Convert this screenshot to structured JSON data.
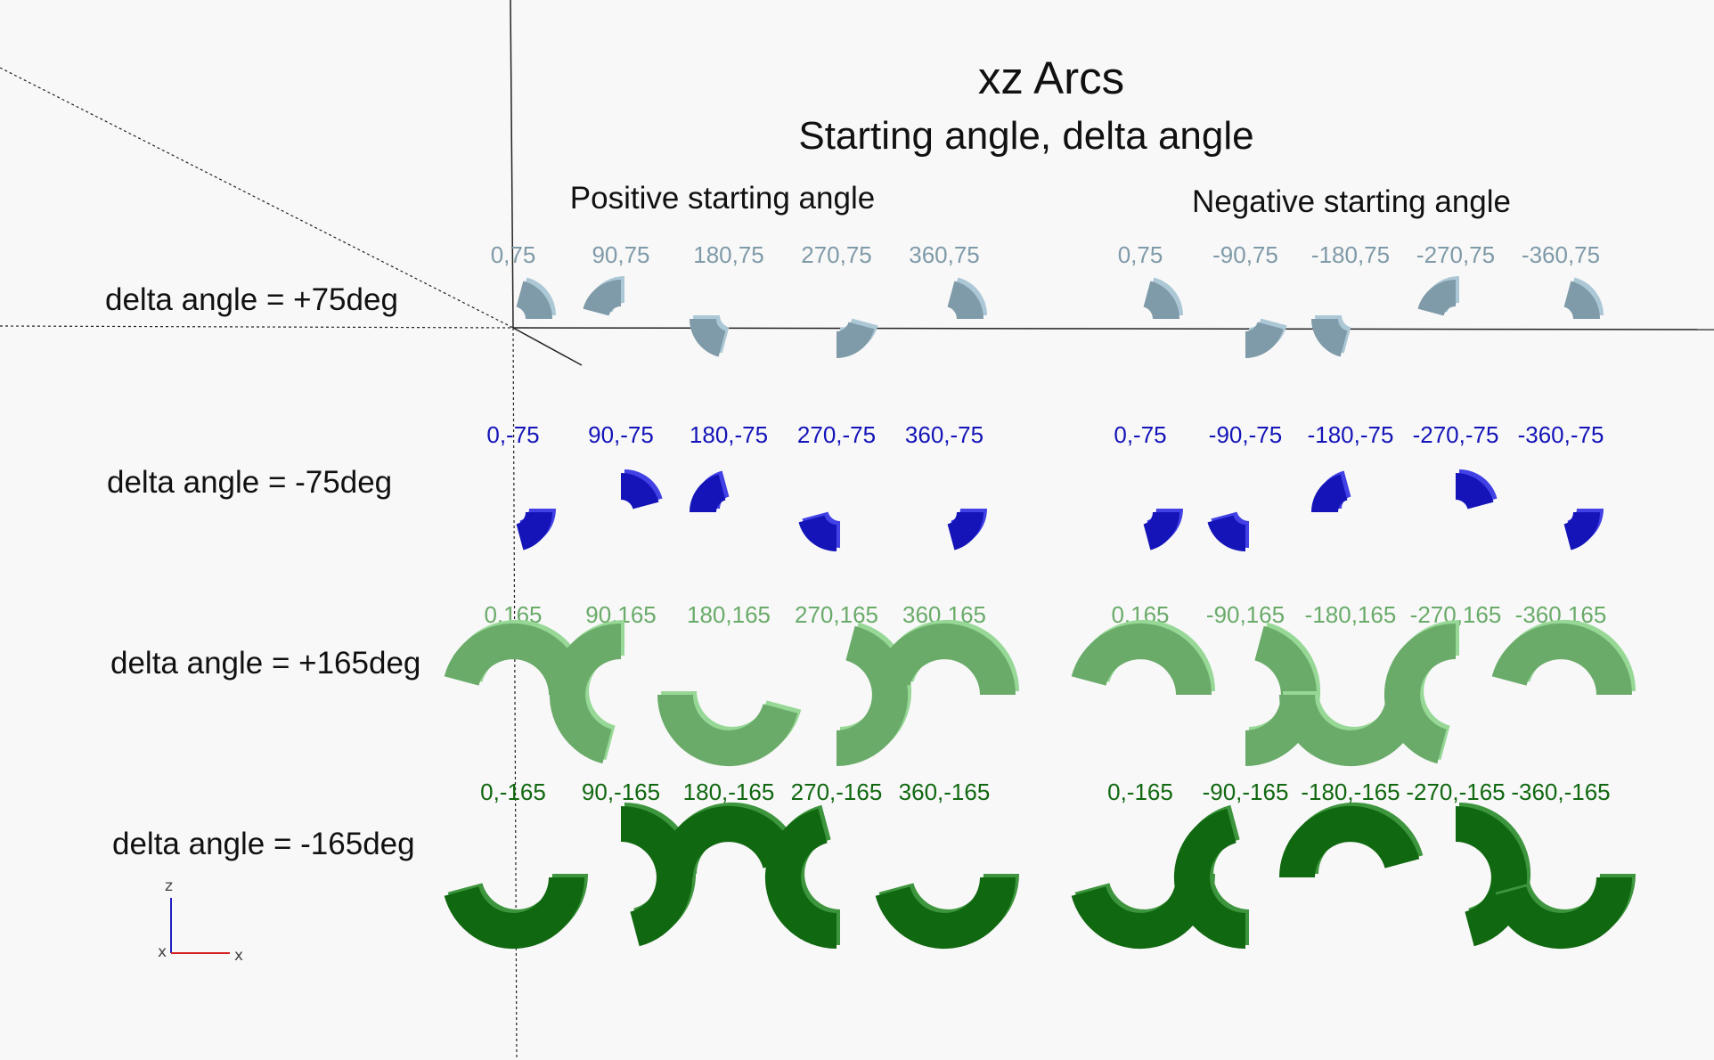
{
  "view": {
    "title": "xz Arcs",
    "subtitle": "Starting angle, delta angle",
    "headers": {
      "positive": "Positive starting angle",
      "negative": "Negative starting angle"
    },
    "axis_indicator": {
      "z": "z",
      "x": "x",
      "y": "x"
    }
  },
  "rows": [
    {
      "label": "delta angle = +75deg",
      "color": "#7f9aa8",
      "cells": [
        {
          "label": "0,75",
          "start": 0,
          "delta": 75
        },
        {
          "label": "90,75",
          "start": 90,
          "delta": 75
        },
        {
          "label": "180,75",
          "start": 180,
          "delta": 75
        },
        {
          "label": "270,75",
          "start": 270,
          "delta": 75
        },
        {
          "label": "360,75",
          "start": 360,
          "delta": 75
        },
        {
          "label": "0,75",
          "start": 0,
          "delta": 75
        },
        {
          "label": "-90,75",
          "start": -90,
          "delta": 75
        },
        {
          "label": "-180,75",
          "start": -180,
          "delta": 75
        },
        {
          "label": "-270,75",
          "start": -270,
          "delta": 75
        },
        {
          "label": "-360,75",
          "start": -360,
          "delta": 75
        }
      ]
    },
    {
      "label": "delta angle = -75deg",
      "color": "#1414b8",
      "cells": [
        {
          "label": "0,-75",
          "start": 0,
          "delta": -75
        },
        {
          "label": "90,-75",
          "start": 90,
          "delta": -75
        },
        {
          "label": "180,-75",
          "start": 180,
          "delta": -75
        },
        {
          "label": "270,-75",
          "start": 270,
          "delta": -75
        },
        {
          "label": "360,-75",
          "start": 360,
          "delta": -75
        },
        {
          "label": "0,-75",
          "start": 0,
          "delta": -75
        },
        {
          "label": "-90,-75",
          "start": -90,
          "delta": -75
        },
        {
          "label": "-180,-75",
          "start": -180,
          "delta": -75
        },
        {
          "label": "-270,-75",
          "start": -270,
          "delta": -75
        },
        {
          "label": "-360,-75",
          "start": -360,
          "delta": -75
        }
      ]
    },
    {
      "label": "delta angle = +165deg",
      "color": "#6aab6a",
      "cells": [
        {
          "label": "0,165",
          "start": 0,
          "delta": 165
        },
        {
          "label": "90,165",
          "start": 90,
          "delta": 165
        },
        {
          "label": "180,165",
          "start": 180,
          "delta": 165
        },
        {
          "label": "270,165",
          "start": 270,
          "delta": 165
        },
        {
          "label": "360,165",
          "start": 360,
          "delta": 165
        },
        {
          "label": "0,165",
          "start": 0,
          "delta": 165
        },
        {
          "label": "-90,165",
          "start": -90,
          "delta": 165
        },
        {
          "label": "-180,165",
          "start": -180,
          "delta": 165
        },
        {
          "label": "-270,165",
          "start": -270,
          "delta": 165
        },
        {
          "label": "-360,165",
          "start": -360,
          "delta": 165
        }
      ]
    },
    {
      "label": "delta angle = -165deg",
      "color": "#106810",
      "cells": [
        {
          "label": "0,-165",
          "start": 0,
          "delta": -165
        },
        {
          "label": "90,-165",
          "start": 90,
          "delta": -165
        },
        {
          "label": "180,-165",
          "start": 180,
          "delta": -165
        },
        {
          "label": "270,-165",
          "start": 270,
          "delta": -165
        },
        {
          "label": "360,-165",
          "start": 360,
          "delta": -165
        },
        {
          "label": "0,-165",
          "start": 0,
          "delta": -165
        },
        {
          "label": "-90,-165",
          "start": -90,
          "delta": -165
        },
        {
          "label": "-180,-165",
          "start": -180,
          "delta": -165
        },
        {
          "label": "-270,-165",
          "start": -270,
          "delta": -165
        },
        {
          "label": "-360,-165",
          "start": -360,
          "delta": -165
        }
      ]
    }
  ],
  "colors": {
    "background": "#f8f8f8",
    "axis_x_indicator": "#d42020",
    "axis_z_indicator": "#2020c0"
  }
}
